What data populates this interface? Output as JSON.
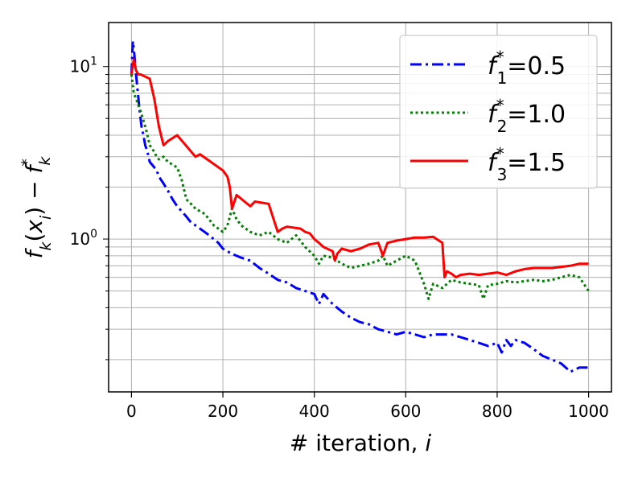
{
  "chart_data": {
    "type": "line",
    "title": "",
    "xlabel_prefix": "# iteration, ",
    "xlabel_var": "i",
    "ylabel": "f_k(x_i) − f_k^*",
    "xlim": [
      -50,
      1050
    ],
    "ylim": [
      0.13,
      18
    ],
    "yscale": "log",
    "grid": true,
    "legend_position": "upper right",
    "x_ticks": [
      {
        "value": 0,
        "label": "0"
      },
      {
        "value": 200,
        "label": "200"
      },
      {
        "value": 400,
        "label": "400"
      },
      {
        "value": 600,
        "label": "600"
      },
      {
        "value": 800,
        "label": "800"
      },
      {
        "value": 1000,
        "label": "1000"
      }
    ],
    "y_ticks": [
      {
        "value": 1,
        "base": "10",
        "exp": "0"
      },
      {
        "value": 10,
        "base": "10",
        "exp": "1"
      }
    ],
    "series": [
      {
        "name": "f_1^*=0.5",
        "legend": {
          "var": "f",
          "sub": "1",
          "sup": "*",
          "value": "=0.5"
        },
        "color": "#0000ff",
        "style": "dashdot",
        "x": [
          0,
          3,
          6,
          10,
          14,
          18,
          22,
          26,
          30,
          35,
          40,
          45,
          50,
          55,
          60,
          70,
          80,
          90,
          100,
          110,
          120,
          130,
          140,
          150,
          160,
          170,
          180,
          190,
          200,
          220,
          240,
          260,
          280,
          300,
          320,
          340,
          360,
          380,
          400,
          410,
          420,
          440,
          460,
          480,
          500,
          520,
          540,
          560,
          580,
          600,
          620,
          640,
          660,
          680,
          700,
          720,
          740,
          760,
          780,
          800,
          810,
          820,
          830,
          840,
          860,
          880,
          900,
          920,
          940,
          950,
          960,
          980,
          1000
        ],
        "y": [
          9,
          14,
          12,
          9,
          7,
          5.5,
          4.5,
          4,
          3.5,
          3.2,
          2.8,
          2.7,
          2.6,
          2.5,
          2.3,
          2.1,
          1.9,
          1.7,
          1.55,
          1.45,
          1.35,
          1.25,
          1.2,
          1.15,
          1.1,
          1.05,
          1.0,
          0.95,
          0.88,
          0.82,
          0.78,
          0.75,
          0.68,
          0.63,
          0.58,
          0.56,
          0.52,
          0.5,
          0.48,
          0.42,
          0.48,
          0.42,
          0.38,
          0.35,
          0.33,
          0.32,
          0.3,
          0.29,
          0.28,
          0.29,
          0.28,
          0.27,
          0.28,
          0.28,
          0.28,
          0.27,
          0.26,
          0.25,
          0.24,
          0.25,
          0.22,
          0.26,
          0.24,
          0.26,
          0.25,
          0.23,
          0.21,
          0.2,
          0.19,
          0.18,
          0.17,
          0.18,
          0.18
        ]
      },
      {
        "name": "f_2^*=1.0",
        "legend": {
          "var": "f",
          "sub": "2",
          "sup": "*",
          "value": "=1.0"
        },
        "color": "#008000",
        "style": "dotted",
        "x": [
          0,
          5,
          10,
          15,
          20,
          25,
          30,
          35,
          40,
          50,
          55,
          60,
          70,
          80,
          90,
          100,
          110,
          120,
          130,
          140,
          150,
          160,
          170,
          180,
          190,
          200,
          210,
          220,
          230,
          240,
          250,
          260,
          280,
          300,
          320,
          340,
          360,
          380,
          400,
          410,
          420,
          440,
          460,
          480,
          500,
          520,
          540,
          550,
          560,
          580,
          600,
          620,
          640,
          650,
          655,
          660,
          680,
          700,
          720,
          740,
          760,
          770,
          780,
          800,
          820,
          840,
          860,
          880,
          900,
          920,
          940,
          960,
          980,
          1000
        ],
        "y": [
          9,
          7,
          6.5,
          6,
          5.5,
          5,
          4.5,
          4,
          3.5,
          3.2,
          3.0,
          2.9,
          3.0,
          2.8,
          2.7,
          2.6,
          2.2,
          1.7,
          1.6,
          1.5,
          1.45,
          1.4,
          1.3,
          1.2,
          1.15,
          1.1,
          1.2,
          1.5,
          1.3,
          1.2,
          1.15,
          1.1,
          1.05,
          1.1,
          1.0,
          0.95,
          1.05,
          0.9,
          0.8,
          0.72,
          0.8,
          0.78,
          0.72,
          0.68,
          0.7,
          0.72,
          0.75,
          0.8,
          0.7,
          0.75,
          0.8,
          0.75,
          0.55,
          0.45,
          0.5,
          0.55,
          0.52,
          0.58,
          0.56,
          0.55,
          0.54,
          0.45,
          0.54,
          0.55,
          0.57,
          0.56,
          0.57,
          0.58,
          0.57,
          0.58,
          0.6,
          0.62,
          0.6,
          0.5
        ]
      },
      {
        "name": "f_3^*=1.5",
        "legend": {
          "var": "f",
          "sub": "3",
          "sup": "*",
          "value": "=1.5"
        },
        "color": "#ff0000",
        "style": "solid",
        "x": [
          0,
          5,
          10,
          15,
          20,
          40,
          50,
          60,
          70,
          80,
          100,
          140,
          150,
          200,
          210,
          215,
          220,
          230,
          260,
          265,
          270,
          300,
          320,
          330,
          340,
          370,
          380,
          390,
          400,
          410,
          420,
          440,
          445,
          450,
          460,
          480,
          500,
          520,
          540,
          550,
          560,
          580,
          600,
          620,
          640,
          660,
          680,
          685,
          690,
          700,
          710,
          720,
          740,
          760,
          780,
          800,
          820,
          840,
          860,
          880,
          900,
          920,
          940,
          960,
          980,
          1000
        ],
        "y": [
          9,
          11,
          9.5,
          9,
          9,
          8.5,
          6.5,
          4.5,
          3.5,
          3.7,
          4.0,
          3.0,
          3.1,
          2.5,
          2.3,
          2.0,
          1.5,
          1.8,
          1.55,
          1.6,
          1.65,
          1.6,
          1.1,
          1.15,
          1.18,
          1.15,
          1.1,
          1.08,
          1.0,
          0.95,
          0.9,
          0.85,
          0.75,
          0.82,
          0.88,
          0.85,
          0.88,
          0.93,
          0.95,
          0.8,
          0.95,
          0.98,
          1.0,
          1.02,
          1.02,
          1.03,
          0.95,
          0.6,
          0.65,
          0.63,
          0.6,
          0.62,
          0.63,
          0.62,
          0.63,
          0.64,
          0.62,
          0.65,
          0.67,
          0.68,
          0.68,
          0.68,
          0.69,
          0.7,
          0.72,
          0.72
        ]
      }
    ]
  }
}
